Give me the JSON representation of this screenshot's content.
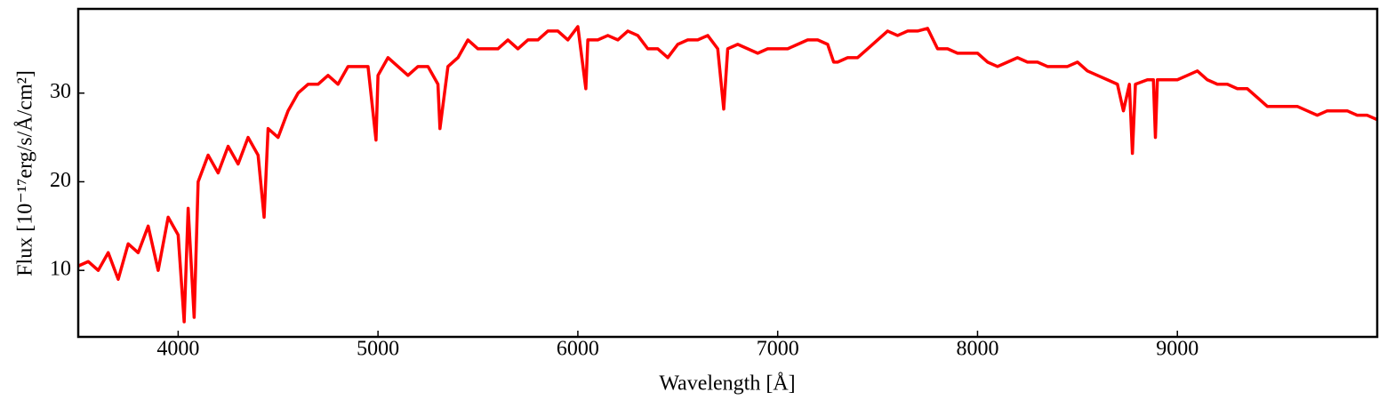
{
  "chart_data": {
    "type": "line",
    "xlabel": "Wavelength [Å]",
    "ylabel": "Flux [10⁻¹⁷erg/s/Å/cm²]",
    "color": "#ff0000",
    "xlim": [
      3500,
      10000
    ],
    "ylim": [
      2.5,
      39.5
    ],
    "xticks": [
      4000,
      5000,
      6000,
      7000,
      8000,
      9000
    ],
    "yticks": [
      10,
      20,
      30
    ],
    "x": [
      3500,
      3550,
      3600,
      3650,
      3700,
      3750,
      3800,
      3850,
      3900,
      3950,
      4000,
      4030,
      4050,
      4080,
      4100,
      4150,
      4200,
      4250,
      4300,
      4350,
      4400,
      4430,
      4450,
      4500,
      4550,
      4600,
      4650,
      4700,
      4750,
      4800,
      4850,
      4900,
      4950,
      4990,
      5000,
      5050,
      5100,
      5150,
      5200,
      5250,
      5300,
      5310,
      5350,
      5400,
      5450,
      5500,
      5550,
      5600,
      5650,
      5700,
      5750,
      5800,
      5850,
      5900,
      5950,
      6000,
      6040,
      6050,
      6100,
      6150,
      6200,
      6250,
      6300,
      6350,
      6400,
      6450,
      6500,
      6550,
      6600,
      6650,
      6700,
      6730,
      6750,
      6800,
      6850,
      6900,
      6950,
      7000,
      7050,
      7100,
      7150,
      7200,
      7250,
      7280,
      7300,
      7350,
      7400,
      7450,
      7500,
      7550,
      7600,
      7650,
      7700,
      7750,
      7800,
      7850,
      7900,
      7950,
      8000,
      8050,
      8100,
      8150,
      8200,
      8250,
      8300,
      8350,
      8400,
      8450,
      8500,
      8550,
      8600,
      8650,
      8700,
      8730,
      8760,
      8775,
      8790,
      8850,
      8880,
      8890,
      8900,
      8950,
      9000,
      9050,
      9100,
      9150,
      9200,
      9250,
      9300,
      9350,
      9400,
      9450,
      9500,
      9550,
      9600,
      9650,
      9700,
      9750,
      9800,
      9850,
      9900,
      9950,
      10000
    ],
    "values": [
      10.5,
      11,
      10,
      12,
      9,
      13,
      12,
      15,
      10,
      16,
      14,
      4.2,
      17,
      4.7,
      20,
      23,
      21,
      24,
      22,
      25,
      23,
      16,
      26,
      25,
      28,
      30,
      31,
      31,
      32,
      31,
      33,
      33,
      33,
      24.7,
      32,
      34,
      33,
      32,
      33,
      33,
      31,
      26,
      33,
      34,
      36,
      35,
      35,
      35,
      36,
      35,
      36,
      36,
      37,
      37,
      36,
      37.5,
      30.5,
      36,
      36,
      36.5,
      36,
      37,
      36.5,
      35,
      35,
      34,
      35.5,
      36,
      36,
      36.5,
      35,
      28.2,
      35,
      35.5,
      35,
      34.5,
      35,
      35,
      35,
      35.5,
      36,
      36,
      35.5,
      33.5,
      33.5,
      34,
      34,
      35,
      36,
      37,
      36.5,
      37,
      37,
      37.3,
      35,
      35,
      34.5,
      34.5,
      34.5,
      33.5,
      33,
      33.5,
      34,
      33.5,
      33.5,
      33,
      33,
      33,
      33.5,
      32.5,
      32,
      31.5,
      31,
      28,
      31,
      23.2,
      31,
      31.5,
      31.5,
      25,
      31.5,
      31.5,
      31.5,
      32,
      32.5,
      31.5,
      31,
      31,
      30.5,
      30.5,
      29.5,
      28.5,
      28.5,
      28.5,
      28.5,
      28,
      27.5,
      28,
      28,
      28,
      27.5,
      27.5,
      27
    ]
  }
}
